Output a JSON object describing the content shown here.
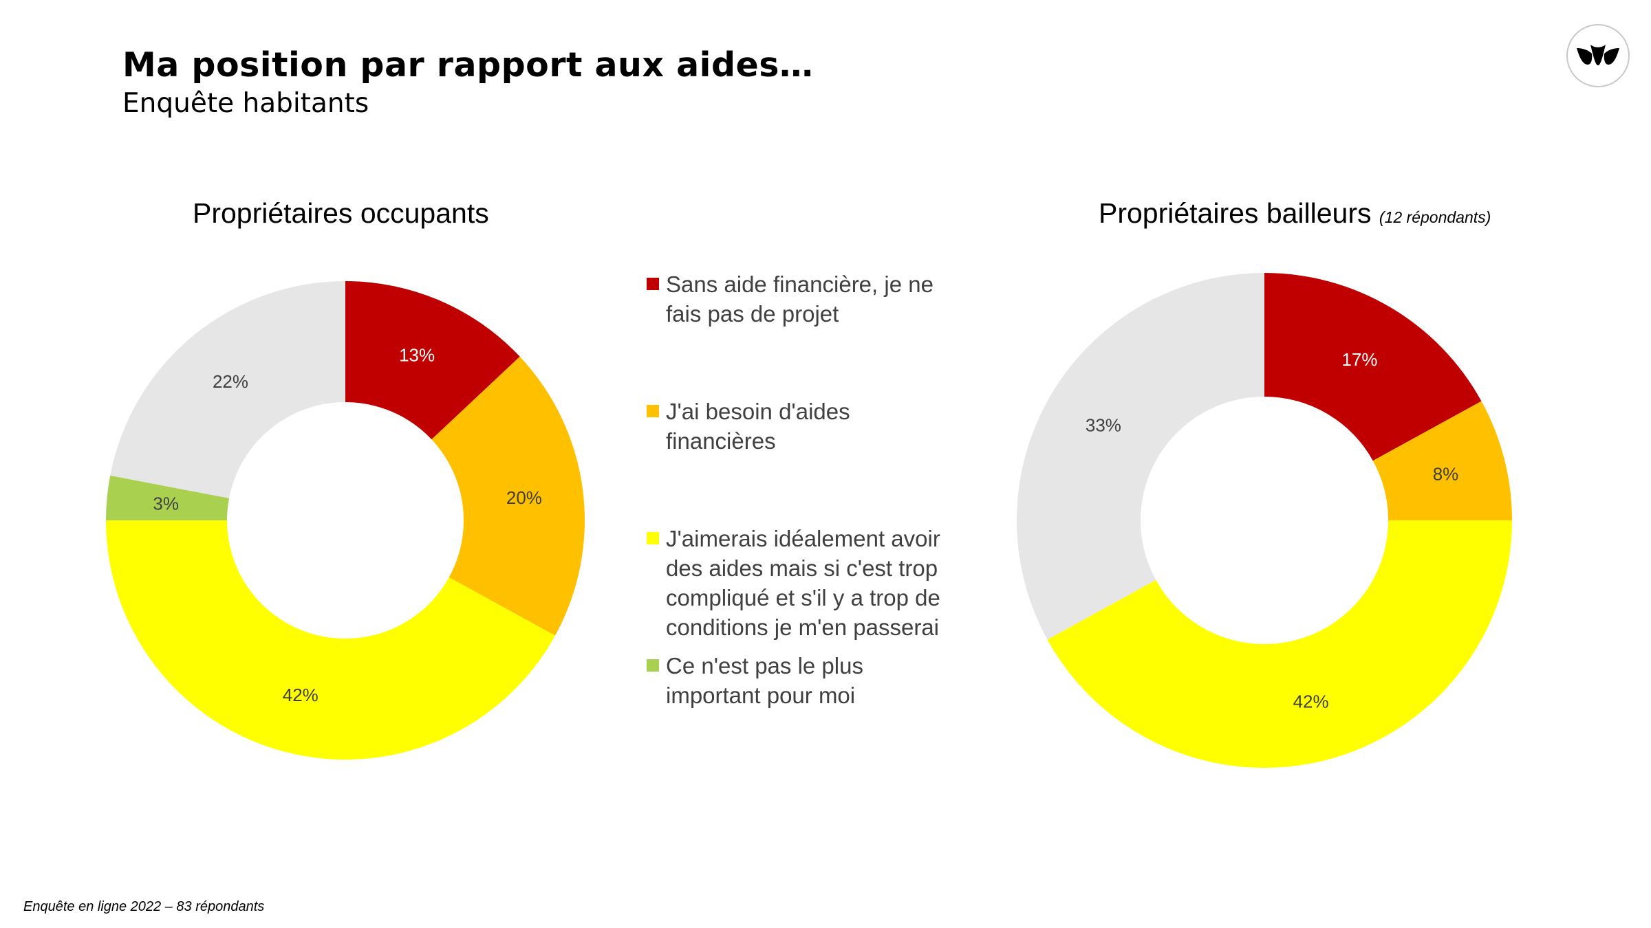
{
  "header": {
    "title": "Ma position par rapport aux aides…",
    "subtitle": "Enquête habitants"
  },
  "footer": {
    "note": "Enquête en ligne 2022 – 83 répondants"
  },
  "logo": {
    "icon": "leaves-logo-icon"
  },
  "colors": {
    "sans_aide": "#C00000",
    "besoin": "#FFC000",
    "ideal": "#FFFF00",
    "pas_important": "#A9D04F",
    "neutral": "#E7E6E6"
  },
  "legend": [
    {
      "label": "Sans aide financière, je ne fais pas de projet",
      "color": "#C00000"
    },
    {
      "label": "J'ai besoin d'aides financières",
      "color": "#FFC000"
    },
    {
      "label": "J'aimerais idéalement avoir des aides mais si c'est trop compliqué et s'il y a trop de conditions je m'en passerai",
      "color": "#FFFF00"
    },
    {
      "label": "Ce n'est pas le plus important pour moi",
      "color": "#A9D04F"
    }
  ],
  "chart_data": [
    {
      "type": "pie",
      "donut": true,
      "title": "Propriétaires occupants",
      "note": "",
      "slices": [
        {
          "value": 13,
          "label": "13%",
          "color": "#C00000"
        },
        {
          "value": 20,
          "label": "20%",
          "color": "#FFC000"
        },
        {
          "value": 42,
          "label": "42%",
          "color": "#FFFF00"
        },
        {
          "value": 3,
          "label": "3%",
          "color": "#A9D04F"
        },
        {
          "value": 22,
          "label": "22%",
          "color": "#E7E6E6"
        }
      ]
    },
    {
      "type": "pie",
      "donut": true,
      "title": "Propriétaires bailleurs",
      "note": "(12 répondants)",
      "slices": [
        {
          "value": 17,
          "label": "17%",
          "color": "#C00000"
        },
        {
          "value": 8,
          "label": "8%",
          "color": "#FFC000"
        },
        {
          "value": 42,
          "label": "42%",
          "color": "#FFFF00"
        },
        {
          "value": 33,
          "label": "33%",
          "color": "#E7E6E6"
        }
      ]
    }
  ]
}
